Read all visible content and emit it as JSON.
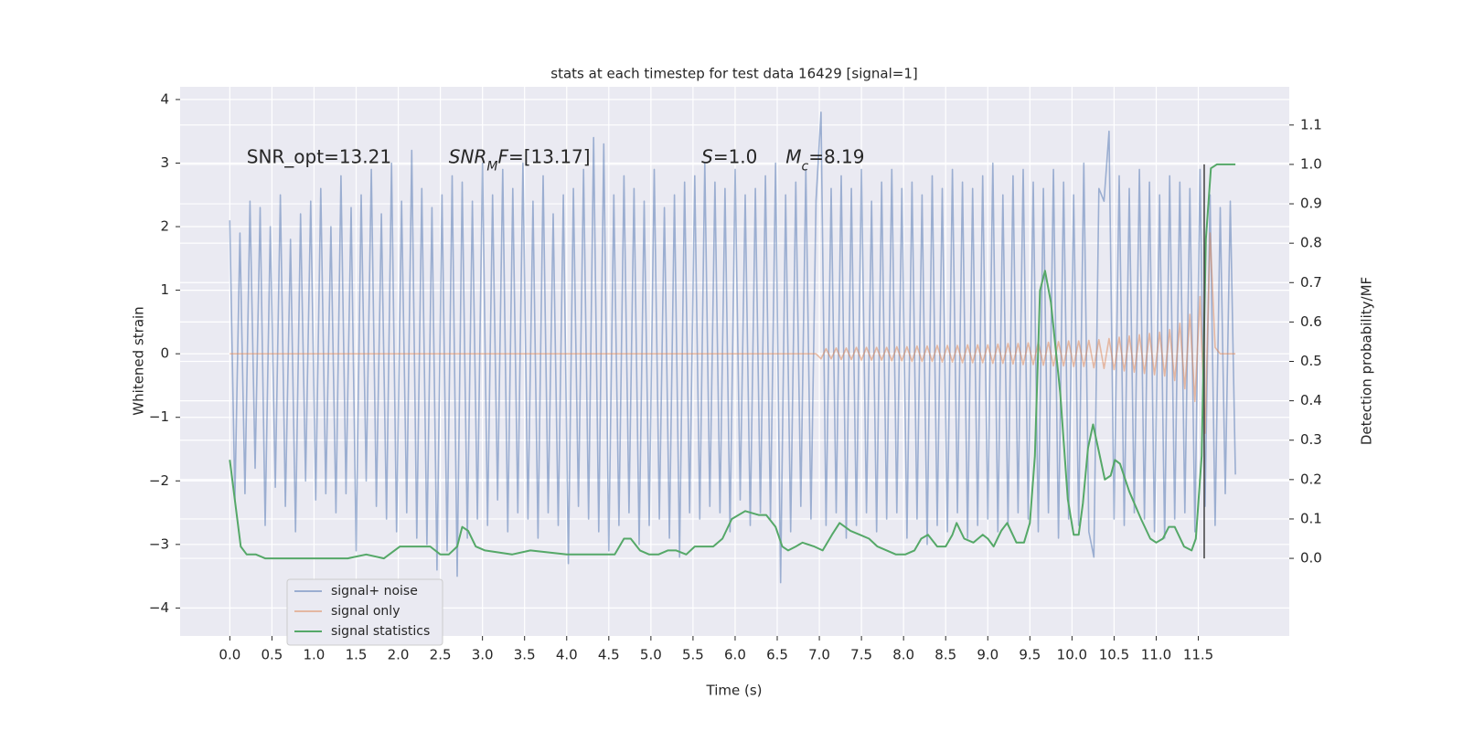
{
  "chart_data": {
    "type": "line",
    "title": "stats at each timestep for test data 16429 [signal=1]",
    "xlabel": "Time (s)",
    "ylabel": "Whitened strain",
    "y2label": "Detection probability/MF",
    "xlim": [
      -0.59,
      12.58
    ],
    "ylim": [
      -4.44,
      4.2
    ],
    "y2lim": [
      -0.197,
      1.197
    ],
    "xticks": [
      {
        "value": 0,
        "label": "0.0"
      },
      0.5,
      {
        "value": 1,
        "label": "1.0"
      },
      1.5,
      {
        "value": 2,
        "label": "2.0"
      },
      2.5,
      {
        "value": 3,
        "label": "3.0"
      },
      3.5,
      {
        "value": 4,
        "label": "4.0"
      },
      4.5,
      {
        "value": 5,
        "label": "5.0"
      },
      5.5,
      {
        "value": 6,
        "label": "6.0"
      },
      6.5,
      {
        "value": 7,
        "label": "7.0"
      },
      7.5,
      {
        "value": 8,
        "label": "8.0"
      },
      8.5,
      {
        "value": 9,
        "label": "9.0"
      },
      9.5,
      {
        "value": 10,
        "label": "10.0"
      },
      10.5,
      {
        "value": 11,
        "label": "11.0"
      },
      11.5
    ],
    "yticks": [
      {
        "value": -4,
        "label": "−4"
      },
      {
        "value": -3,
        "label": "−3"
      },
      {
        "value": -2,
        "label": "−2"
      },
      {
        "value": -1,
        "label": "−1"
      },
      0,
      1,
      2,
      3,
      4
    ],
    "y2ticks": [
      {
        "value": 0,
        "label": "0.0"
      },
      0.1,
      0.2,
      0.3,
      0.4,
      0.5,
      0.6,
      0.7,
      0.8,
      0.9,
      {
        "value": 1,
        "label": "1.0"
      },
      1.1
    ],
    "grid": true,
    "legend": "lower left",
    "series": [
      {
        "name": "signal+ noise",
        "color": "#4c72b0",
        "alpha": 0.5,
        "axis": "y",
        "x_start": 0,
        "x_step": 0.06,
        "values": [
          2.1,
          -2.3,
          1.9,
          -2.2,
          2.4,
          -1.8,
          2.3,
          -2.7,
          2.0,
          -2.1,
          2.5,
          -2.4,
          1.8,
          -2.8,
          2.2,
          -2.0,
          2.4,
          -2.3,
          2.6,
          -2.2,
          2.0,
          -2.5,
          2.8,
          -2.2,
          2.3,
          -3.1,
          2.5,
          -2.0,
          2.9,
          -2.4,
          2.2,
          -2.6,
          3.0,
          -2.8,
          2.4,
          -2.5,
          3.2,
          -2.9,
          2.6,
          -3.0,
          2.3,
          -3.4,
          2.5,
          -3.1,
          2.8,
          -3.5,
          2.7,
          -2.9,
          2.4,
          -2.6,
          3.0,
          -2.7,
          2.5,
          -2.3,
          2.9,
          -2.8,
          2.6,
          -2.5,
          3.0,
          -2.6,
          2.4,
          -2.9,
          2.8,
          -2.5,
          2.2,
          -2.7,
          2.5,
          -3.3,
          2.6,
          -2.4,
          2.9,
          -2.6,
          3.4,
          -2.8,
          3.3,
          -3.1,
          2.5,
          -2.7,
          2.8,
          -2.5,
          2.6,
          -3.0,
          2.4,
          -2.7,
          2.9,
          -2.6,
          2.3,
          -2.9,
          2.5,
          -3.2,
          2.7,
          -2.5,
          2.8,
          -2.6,
          3.0,
          -2.4,
          2.7,
          -2.5,
          2.6,
          -2.8,
          2.9,
          -2.3,
          2.5,
          -2.7,
          2.6,
          -2.5,
          2.8,
          -2.6,
          3.0,
          -3.6,
          2.5,
          -2.8,
          2.7,
          -2.4,
          2.9,
          -2.6,
          2.4,
          3.8,
          -2.7,
          2.6,
          -2.5,
          2.8,
          -2.9,
          2.6,
          -2.7,
          2.9,
          -2.5,
          2.4,
          -2.8,
          2.7,
          -2.6,
          2.9,
          -2.5,
          2.6,
          -2.9,
          2.7,
          -2.6,
          2.5,
          -3.0,
          2.8,
          -2.7,
          2.6,
          -2.8,
          2.9,
          -2.5,
          2.7,
          -2.9,
          2.6,
          -2.7,
          2.8,
          -2.6,
          3.0,
          -2.8,
          2.5,
          -2.7,
          2.8,
          -2.5,
          2.9,
          -2.6,
          2.7,
          -2.8,
          2.6,
          -2.5,
          2.9,
          -2.9,
          2.7,
          -2.6,
          2.5,
          -2.7,
          3.0,
          -2.8,
          -3.2,
          2.6,
          2.4,
          3.5,
          -2.6,
          2.8,
          -2.7,
          2.6,
          -2.5,
          2.9,
          -2.6,
          2.7,
          -2.8,
          2.5,
          -2.9,
          2.8,
          -2.6,
          2.7,
          -2.5,
          2.6,
          -2.8,
          2.9,
          -2.4,
          2.5,
          -2.7,
          2.3,
          -2.2,
          2.4,
          -1.9
        ]
      },
      {
        "name": "signal only",
        "color": "#dd8452",
        "alpha": 0.5,
        "axis": "y",
        "x_start": 0,
        "x_step": 0.06,
        "values": [
          0,
          0,
          0,
          0,
          0,
          0,
          0,
          0,
          0,
          0,
          0,
          0,
          0,
          0,
          0,
          0,
          0,
          0,
          0,
          0,
          0,
          0,
          0,
          0,
          0,
          0,
          0,
          0,
          0,
          0,
          0,
          0,
          0,
          0,
          0,
          0,
          0,
          0,
          0,
          0,
          0,
          0,
          0,
          0,
          0,
          0,
          0,
          0,
          0,
          0,
          0,
          0,
          0,
          0,
          0,
          0,
          0,
          0,
          0,
          0,
          0,
          0,
          0,
          0,
          0,
          0,
          0,
          0,
          0,
          0,
          0,
          0,
          0,
          0,
          0,
          0,
          0,
          0,
          0,
          0,
          0,
          0,
          0,
          0,
          0,
          0,
          0,
          0,
          0,
          0,
          0,
          0,
          0,
          0,
          0,
          0,
          0,
          0,
          0,
          0,
          0,
          0,
          0,
          0,
          0,
          0,
          0,
          0,
          0,
          0,
          0,
          0,
          0,
          0,
          0,
          0,
          0,
          -0.08,
          0.08,
          -0.08,
          0.09,
          -0.09,
          0.09,
          -0.09,
          0.1,
          -0.1,
          0.1,
          -0.1,
          0.1,
          -0.1,
          0.1,
          -0.11,
          0.11,
          -0.11,
          0.11,
          -0.12,
          0.12,
          -0.12,
          0.12,
          -0.12,
          0.13,
          -0.13,
          0.13,
          -0.13,
          0.13,
          -0.14,
          0.14,
          -0.14,
          0.14,
          -0.14,
          0.14,
          -0.15,
          0.15,
          -0.15,
          0.16,
          -0.16,
          0.16,
          -0.17,
          0.17,
          -0.17,
          0.18,
          -0.18,
          0.18,
          -0.19,
          0.19,
          -0.19,
          0.2,
          -0.2,
          0.2,
          -0.2,
          0.21,
          -0.22,
          0.22,
          -0.23,
          0.24,
          -0.25,
          0.26,
          -0.27,
          0.28,
          -0.29,
          0.3,
          -0.31,
          0.32,
          -0.33,
          0.34,
          -0.35,
          0.38,
          -0.42,
          0.48,
          -0.55,
          0.62,
          -0.75,
          0.9,
          -1.25,
          1.9,
          0.1,
          0,
          0,
          0,
          0
        ]
      },
      {
        "name": "signal statistics",
        "color": "#55a868",
        "alpha": 1,
        "axis": "y2",
        "x": [
          0,
          0.13,
          0.2,
          0.31,
          0.42,
          0.53,
          0.97,
          1.4,
          1.62,
          1.83,
          2.02,
          2.14,
          2.27,
          2.38,
          2.5,
          2.6,
          2.7,
          2.76,
          2.83,
          2.92,
          3.03,
          3.35,
          3.57,
          4.0,
          4.44,
          4.57,
          4.68,
          4.76,
          4.87,
          4.98,
          5.09,
          5.2,
          5.3,
          5.42,
          5.52,
          5.63,
          5.74,
          5.85,
          5.96,
          6.12,
          6.28,
          6.37,
          6.48,
          6.56,
          6.63,
          6.72,
          6.8,
          6.94,
          7.04,
          7.15,
          7.24,
          7.37,
          7.48,
          7.59,
          7.69,
          7.91,
          8.02,
          8.13,
          8.21,
          8.29,
          8.4,
          8.5,
          8.58,
          8.63,
          8.72,
          8.83,
          8.94,
          9.0,
          9.07,
          9.16,
          9.23,
          9.34,
          9.43,
          9.5,
          9.56,
          9.62,
          9.68,
          9.75,
          9.86,
          9.95,
          10.02,
          10.08,
          10.13,
          10.19,
          10.25,
          10.33,
          10.39,
          10.46,
          10.51,
          10.57,
          10.68,
          10.82,
          10.93,
          11.0,
          11.08,
          11.15,
          11.22,
          11.33,
          11.42,
          11.47,
          11.54,
          11.59,
          11.65,
          11.72,
          11.94
        ],
        "values": [
          0.25,
          0.03,
          0.01,
          0.01,
          0,
          0,
          0,
          0,
          0.01,
          0,
          0.03,
          0.03,
          0.03,
          0.03,
          0.01,
          0.01,
          0.03,
          0.08,
          0.07,
          0.03,
          0.02,
          0.01,
          0.02,
          0.01,
          0.01,
          0.01,
          0.05,
          0.05,
          0.02,
          0.01,
          0.01,
          0.02,
          0.02,
          0.01,
          0.03,
          0.03,
          0.03,
          0.05,
          0.1,
          0.12,
          0.11,
          0.11,
          0.08,
          0.03,
          0.02,
          0.03,
          0.04,
          0.03,
          0.02,
          0.06,
          0.09,
          0.07,
          0.06,
          0.05,
          0.03,
          0.01,
          0.01,
          0.02,
          0.05,
          0.06,
          0.03,
          0.03,
          0.06,
          0.09,
          0.05,
          0.04,
          0.06,
          0.05,
          0.03,
          0.07,
          0.09,
          0.04,
          0.04,
          0.09,
          0.26,
          0.68,
          0.73,
          0.65,
          0.42,
          0.15,
          0.06,
          0.06,
          0.14,
          0.28,
          0.34,
          0.26,
          0.2,
          0.21,
          0.25,
          0.24,
          0.17,
          0.1,
          0.05,
          0.04,
          0.05,
          0.08,
          0.08,
          0.03,
          0.02,
          0.05,
          0.26,
          0.81,
          0.99,
          1.0,
          1.0
        ]
      }
    ],
    "vline": {
      "x": 11.57,
      "ymin": 0,
      "ymax": 1,
      "axis": "y2",
      "color": "#404040"
    },
    "annotations": [
      {
        "x": 0.2,
        "y": 3.0,
        "parts": [
          {
            "text": "SNR_opt=13.21"
          }
        ]
      },
      {
        "x": 2.6,
        "y": 3.0,
        "parts": [
          {
            "text": "SNR",
            "italic": true
          },
          {
            "text": "M",
            "italic": true,
            "sub": true
          },
          {
            "text": "F",
            "italic": true
          },
          {
            "text": "=[13.17]"
          }
        ]
      },
      {
        "x": 5.6,
        "y": 3.0,
        "parts": [
          {
            "text": "S",
            "italic": true
          },
          {
            "text": "=1.0"
          }
        ]
      },
      {
        "x": 6.6,
        "y": 3.0,
        "parts": [
          {
            "text": "M",
            "italic": true
          },
          {
            "text": "c",
            "italic": true,
            "sub": true
          },
          {
            "text": "=8.19"
          }
        ]
      }
    ]
  }
}
